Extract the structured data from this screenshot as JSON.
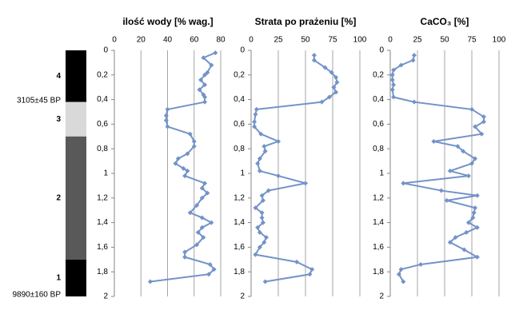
{
  "chart_data": [
    {
      "type": "line",
      "orientation": "vertical",
      "title": "ilość wody [% wag.]",
      "color": "#7393c8",
      "grid": true,
      "xlim": [
        0,
        80
      ],
      "xticks": [
        0,
        20,
        40,
        60,
        80
      ],
      "ylim": [
        0,
        2
      ],
      "yticks": [
        0,
        {
          "value": 0.2,
          "label": "0,2"
        },
        {
          "value": 0.4,
          "label": "0,4"
        },
        {
          "value": 0.6,
          "label": "0,6"
        },
        {
          "value": 0.8,
          "label": "0,8"
        },
        1,
        {
          "value": 1.2,
          "label": "1,2"
        },
        {
          "value": 1.4,
          "label": "1,4"
        },
        {
          "value": 1.6,
          "label": "1,6"
        },
        {
          "value": 1.8,
          "label": "1,8"
        },
        2
      ],
      "y": [
        0.02,
        0.06,
        0.12,
        0.18,
        0.2,
        0.24,
        0.28,
        0.32,
        0.36,
        0.38,
        0.42,
        0.48,
        0.53,
        0.57,
        0.62,
        0.68,
        0.74,
        0.78,
        0.84,
        0.88,
        0.92,
        0.96,
        0.98,
        1.02,
        1.08,
        1.12,
        1.16,
        1.2,
        1.26,
        1.32,
        1.36,
        1.4,
        1.44,
        1.48,
        1.52,
        1.58,
        1.64,
        1.68,
        1.74,
        1.78,
        1.82,
        1.88
      ],
      "values": [
        76,
        67,
        73,
        70,
        68,
        65,
        68,
        64,
        67,
        68,
        68,
        40,
        39,
        39,
        40,
        57,
        60,
        60,
        55,
        48,
        46,
        52,
        55,
        53,
        68,
        66,
        70,
        66,
        62,
        57,
        66,
        73,
        66,
        63,
        67,
        62,
        53,
        53,
        72,
        75,
        71,
        27
      ]
    },
    {
      "type": "line",
      "orientation": "vertical",
      "title": "Strata po prażeniu [%]",
      "color": "#7393c8",
      "grid": true,
      "xlim": [
        0,
        100
      ],
      "xticks": [
        0,
        25,
        50,
        75,
        100
      ],
      "ylim": [
        0,
        2
      ],
      "yticks": [
        0,
        {
          "value": 0.2,
          "label": "0,2"
        },
        {
          "value": 0.4,
          "label": "0,4"
        },
        {
          "value": 0.6,
          "label": "0,6"
        },
        {
          "value": 0.8,
          "label": "0,8"
        },
        1,
        {
          "value": 1.2,
          "label": "1,2"
        },
        {
          "value": 1.4,
          "label": "1,4"
        },
        {
          "value": 1.6,
          "label": "1,6"
        },
        {
          "value": 1.8,
          "label": "1,8"
        },
        2
      ],
      "y": [
        0.04,
        0.08,
        0.14,
        0.18,
        0.22,
        0.26,
        0.3,
        0.34,
        0.38,
        0.42,
        0.48,
        0.52,
        0.58,
        0.62,
        0.68,
        0.74,
        0.78,
        0.82,
        0.88,
        0.92,
        0.98,
        1.02,
        1.08,
        1.14,
        1.18,
        1.22,
        1.28,
        1.32,
        1.36,
        1.4,
        1.44,
        1.48,
        1.52,
        1.56,
        1.6,
        1.66,
        1.72,
        1.78,
        1.82,
        1.88
      ],
      "values": [
        58,
        58,
        68,
        74,
        78,
        79,
        76,
        78,
        72,
        65,
        5,
        4,
        3,
        3,
        9,
        25,
        12,
        13,
        8,
        6,
        8,
        25,
        50,
        16,
        10,
        11,
        4,
        10,
        10,
        11,
        6,
        8,
        14,
        12,
        8,
        4,
        42,
        56,
        54,
        13
      ]
    },
    {
      "type": "line",
      "orientation": "vertical",
      "title": "CaCO₃ [%]",
      "color": "#7393c8",
      "grid": true,
      "xlim": [
        0,
        100
      ],
      "xticks": [
        0,
        25,
        50,
        75,
        100
      ],
      "ylim": [
        0,
        2
      ],
      "yticks": [
        0,
        {
          "value": 0.2,
          "label": "0,2"
        },
        {
          "value": 0.4,
          "label": "0,4"
        },
        {
          "value": 0.6,
          "label": "0,6"
        },
        {
          "value": 0.8,
          "label": "0,8"
        },
        1,
        {
          "value": 1.2,
          "label": "1,2"
        },
        {
          "value": 1.4,
          "label": "1,4"
        },
        {
          "value": 1.6,
          "label": "1,6"
        },
        {
          "value": 1.8,
          "label": "1,8"
        },
        2
      ],
      "y": [
        0.04,
        0.08,
        0.12,
        0.16,
        0.2,
        0.24,
        0.28,
        0.32,
        0.38,
        0.42,
        0.48,
        0.54,
        0.58,
        0.62,
        0.68,
        0.74,
        0.78,
        0.82,
        0.88,
        0.92,
        0.98,
        1.02,
        1.08,
        1.14,
        1.18,
        1.22,
        1.28,
        1.32,
        1.36,
        1.4,
        1.44,
        1.48,
        1.52,
        1.56,
        1.62,
        1.68,
        1.74,
        1.78,
        1.82,
        1.88
      ],
      "values": [
        22,
        21,
        10,
        3,
        2,
        2,
        3,
        2,
        3,
        22,
        75,
        86,
        86,
        78,
        84,
        40,
        62,
        67,
        78,
        75,
        55,
        72,
        12,
        47,
        80,
        52,
        78,
        77,
        76,
        72,
        80,
        70,
        60,
        55,
        68,
        80,
        28,
        10,
        8,
        12
      ]
    }
  ],
  "profile": {
    "layers": [
      {
        "label": "4",
        "top": 0,
        "bottom": 0.42,
        "color": "#000000"
      },
      {
        "label": "3",
        "top": 0.42,
        "bottom": 0.7,
        "color": "#d9d9d9"
      },
      {
        "label": "2",
        "top": 0.7,
        "bottom": 1.7,
        "color": "#595959"
      },
      {
        "label": "1",
        "top": 1.7,
        "bottom": 2,
        "color": "#000000"
      }
    ],
    "dates": [
      {
        "label": "3105±45 BP",
        "depth": 0.42
      },
      {
        "label": "9890±160 BP",
        "depth": 2
      }
    ]
  }
}
